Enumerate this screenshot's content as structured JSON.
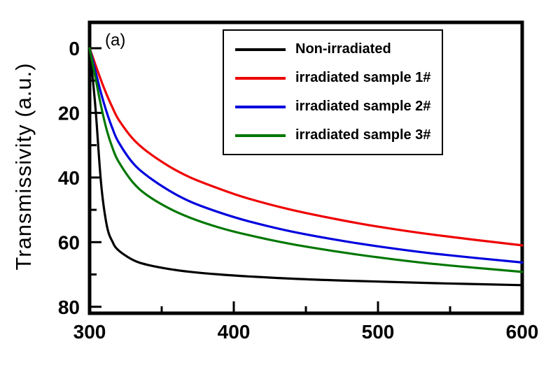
{
  "chart_data": {
    "type": "line",
    "title": "",
    "annotation": "(a)",
    "xlabel": "",
    "ylabel": "Transmissivity (a.u.)",
    "xlim": [
      300,
      600
    ],
    "ylim": [
      82,
      -8
    ],
    "y_axis_inverted": true,
    "grid": false,
    "legend_position": "upper-center-inside",
    "x_ticks": [
      300,
      400,
      500,
      600
    ],
    "x_minor_ticks": [
      350,
      450,
      550
    ],
    "y_ticks": [
      0,
      20,
      40,
      60,
      80
    ],
    "y_minor_ticks": [
      10,
      30,
      50,
      70
    ],
    "x": [
      300,
      304,
      308,
      312,
      316,
      320,
      330,
      340,
      355,
      370,
      390,
      410,
      440,
      470,
      500,
      540,
      600
    ],
    "series": [
      {
        "name": "Non-irradiated",
        "color": "#000000",
        "values": [
          0,
          18,
          42,
          55,
          60,
          62.5,
          65.5,
          67,
          68.3,
          69.2,
          70,
          70.6,
          71.3,
          71.8,
          72.2,
          72.7,
          73.3
        ]
      },
      {
        "name": "irradiated sample 1#",
        "color": "#ee0000",
        "values": [
          0,
          5,
          10,
          14.5,
          18.5,
          22,
          28,
          32,
          36.5,
          40,
          43.5,
          46.5,
          50,
          52.8,
          55.2,
          57.8,
          61
        ]
      },
      {
        "name": "irradiated sample 2#",
        "color": "#0000dd",
        "values": [
          0,
          7,
          14,
          20,
          25,
          29,
          35.5,
          39.5,
          44,
          47.5,
          50.8,
          53.5,
          56.7,
          59.2,
          61.3,
          63.6,
          66.3
        ]
      },
      {
        "name": "irradiated sample 3#",
        "color": "#007700",
        "values": [
          0,
          9,
          18,
          25.5,
          31,
          35,
          41.5,
          45.5,
          49.5,
          52.5,
          55.5,
          57.8,
          60.6,
          62.8,
          64.7,
          66.8,
          69.2
        ]
      }
    ]
  }
}
